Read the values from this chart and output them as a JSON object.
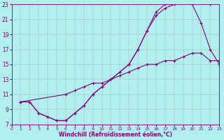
{
  "xlabel": "Windchill (Refroidissement éolien,°C)",
  "bg_color": "#b2f0f0",
  "line_color": "#800080",
  "grid_color": "#aaaaaa",
  "xlim": [
    0,
    23
  ],
  "ylim": [
    7,
    23
  ],
  "yticks": [
    7,
    9,
    11,
    13,
    15,
    17,
    19,
    21,
    23
  ],
  "xticks": [
    0,
    1,
    2,
    3,
    4,
    5,
    6,
    7,
    8,
    9,
    10,
    11,
    12,
    13,
    14,
    15,
    16,
    17,
    18,
    19,
    20,
    21,
    22,
    23
  ],
  "curve_upper_x": [
    1,
    2,
    3,
    4,
    5,
    6,
    7,
    8,
    9,
    10,
    11,
    12,
    13,
    14,
    15,
    16,
    17,
    18,
    19,
    20,
    21,
    22
  ],
  "curve_upper_y": [
    10,
    10,
    8.5,
    8,
    7.5,
    7.5,
    8.5,
    9.5,
    11,
    12,
    13,
    14,
    15,
    17,
    19.5,
    22,
    23,
    23,
    23.5,
    23.5,
    23.5,
    23
  ],
  "curve_middle_x": [
    1,
    2,
    3,
    4,
    5,
    6,
    7,
    8,
    9,
    10,
    11,
    12,
    13,
    14,
    15,
    16,
    17,
    18,
    19,
    20,
    21,
    22,
    23
  ],
  "curve_middle_y": [
    10,
    10,
    8.5,
    8,
    7.5,
    7.5,
    8.5,
    9.5,
    11,
    12,
    13,
    14,
    15,
    17,
    19.5,
    21.5,
    22.5,
    23,
    23.5,
    23,
    20.5,
    17,
    15
  ],
  "curve_lower_x": [
    1,
    6,
    7,
    8,
    9,
    10,
    11,
    12,
    13,
    14,
    15,
    16,
    17,
    18,
    19,
    20,
    21,
    22,
    23
  ],
  "curve_lower_y": [
    10,
    11,
    11.5,
    12,
    12.5,
    12.5,
    13,
    13.5,
    14,
    14.5,
    15,
    15,
    15.5,
    15.5,
    16,
    16.5,
    16.5,
    15.5,
    15.5
  ]
}
